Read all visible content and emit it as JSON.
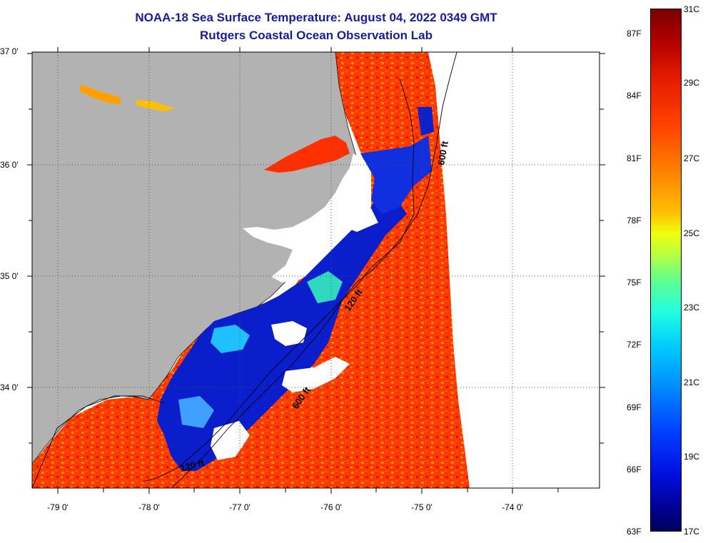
{
  "title": {
    "line1": "NOAA-18 Sea Surface Temperature:  August 04, 2022 0349 GMT",
    "line2": "Rutgers Coastal Ocean Observation Lab"
  },
  "axes": {
    "latitude_labels": [
      {
        "text": "37 0'",
        "lat": 37.0
      },
      {
        "text": "36 0'",
        "lat": 36.0
      },
      {
        "text": "35 0'",
        "lat": 35.0
      },
      {
        "text": "34 0'",
        "lat": 34.0
      }
    ],
    "longitude_labels": [
      {
        "text": "-79 0'",
        "lon": -79.0
      },
      {
        "text": "-78 0'",
        "lon": -78.0
      },
      {
        "text": "-77 0'",
        "lon": -77.0
      },
      {
        "text": "-76 0'",
        "lon": -76.0
      },
      {
        "text": "-75 0'",
        "lon": -75.0
      },
      {
        "text": "-74 0'",
        "lon": -74.0
      }
    ]
  },
  "contours": [
    {
      "label": "600 ft"
    },
    {
      "label": "120 ft"
    },
    {
      "label": "600 ft"
    },
    {
      "label": "120 ft"
    }
  ],
  "colorbar": {
    "fahrenheit": [
      "87F",
      "84F",
      "81F",
      "78F",
      "75F",
      "72F",
      "69F",
      "66F",
      "63F"
    ],
    "celsius": [
      "31C",
      "29C",
      "27C",
      "25C",
      "23C",
      "21C",
      "19C",
      "17C"
    ]
  },
  "colors": {
    "title": "#1a1aa0",
    "land": "#b2b2b2",
    "no_data": "#ffffff",
    "warm": "#ff3c00",
    "cold": "#0a1ecc"
  }
}
